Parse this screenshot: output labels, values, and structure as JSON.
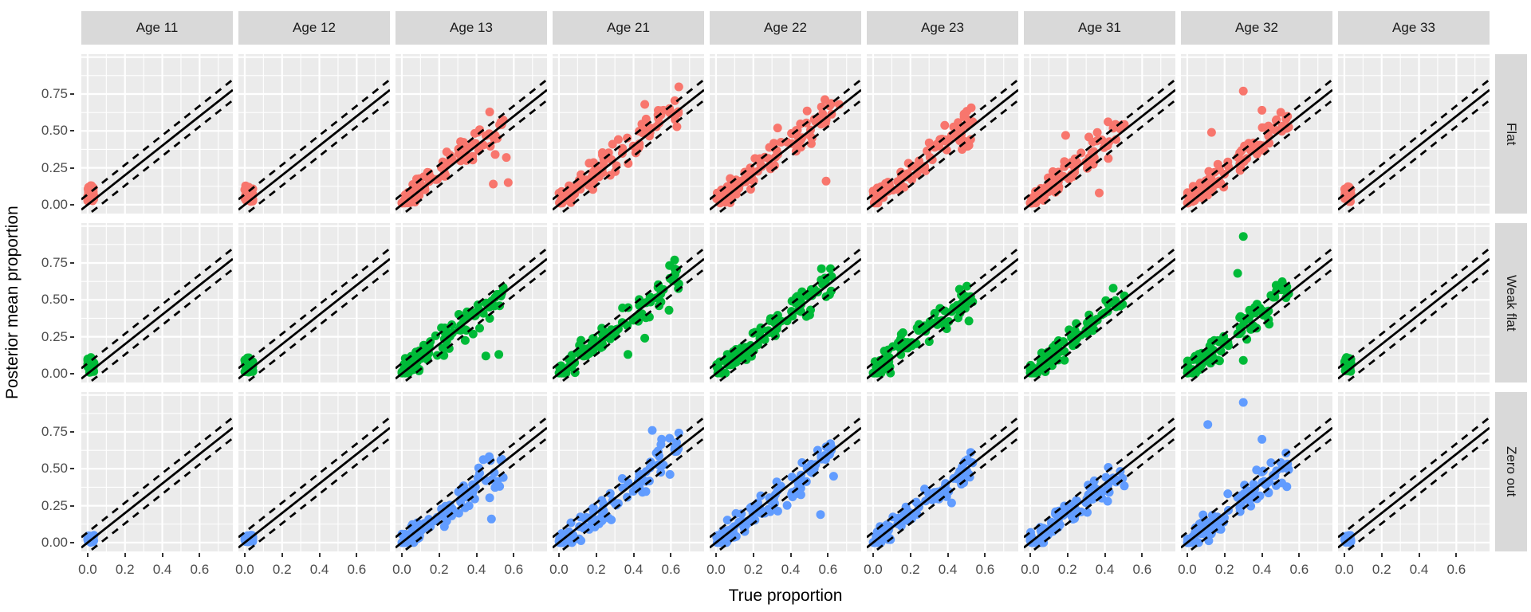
{
  "chart_data": {
    "type": "scatter",
    "title": "",
    "xlabel": "True proportion",
    "ylabel": "Posterior mean proportion",
    "xlim": [
      -0.034,
      0.778
    ],
    "ylim": [
      -0.06,
      1.02
    ],
    "grid": "on",
    "legend": "none",
    "x_ticks": [
      {
        "v": 0.0,
        "label": "0.0"
      },
      {
        "v": 0.2,
        "label": "0.2"
      },
      {
        "v": 0.4,
        "label": "0.4"
      },
      {
        "v": 0.6,
        "label": "0.6"
      }
    ],
    "y_ticks": [
      {
        "v": 0.0,
        "label": "0.00"
      },
      {
        "v": 0.25,
        "label": "0.25"
      },
      {
        "v": 0.5,
        "label": "0.50"
      },
      {
        "v": 0.75,
        "label": "0.75"
      }
    ],
    "x_minor": [
      0.1,
      0.3,
      0.5,
      0.7
    ],
    "y_major_gridlines": [
      0,
      0.25,
      0.5,
      0.75,
      1.0
    ],
    "y_minor": [
      0.125,
      0.375,
      0.625,
      0.875
    ],
    "identity_line": {
      "slope": 1,
      "intercept": 0,
      "style": "solid"
    },
    "band_lines": {
      "offsets": [
        0.07,
        -0.07
      ],
      "style": "dashed"
    },
    "style": {
      "panel_bg": "#EBEBEB",
      "strip_bg": "#D9D9D9",
      "grid_color": "#FFFFFF",
      "tick_text_color": "#4D4D4D",
      "strip_text_color": "#1A1A1A",
      "line_color": "#000000",
      "point_radius": 5.5
    },
    "facet_rows": [
      {
        "label": "Flat",
        "color": "#F8766D",
        "bias": 0.025,
        "sd": 0.06,
        "ymin": 0.012,
        "origin_y": [
          0.02,
          0.13
        ]
      },
      {
        "label": "Weak flat",
        "color": "#00BA38",
        "bias": 0.005,
        "sd": 0.06,
        "ymin": 0.004,
        "origin_y": [
          0.008,
          0.11
        ]
      },
      {
        "label": "Zero out",
        "color": "#619CFF",
        "bias": -0.01,
        "sd": 0.065,
        "ymin": 0.0,
        "origin_y": [
          0.0,
          0.05
        ]
      }
    ],
    "facet_cols": [
      {
        "label": "Age 11",
        "kind": "origin",
        "n": 28,
        "xmax": 0.035,
        "pow": 1.3
      },
      {
        "label": "Age 12",
        "kind": "origin",
        "n": 30,
        "xmax": 0.045,
        "pow": 1.3
      },
      {
        "label": "Age 13",
        "kind": "cloud",
        "n": 90,
        "xmax": 0.55,
        "pow": 1.5
      },
      {
        "label": "Age 21",
        "kind": "cloud",
        "n": 95,
        "xmax": 0.65,
        "pow": 1.4
      },
      {
        "label": "Age 22",
        "kind": "cloud",
        "n": 95,
        "xmax": 0.62,
        "pow": 1.45
      },
      {
        "label": "Age 23",
        "kind": "cloud",
        "n": 92,
        "xmax": 0.56,
        "pow": 1.45
      },
      {
        "label": "Age 31",
        "kind": "cloud",
        "n": 92,
        "xmax": 0.52,
        "pow": 1.5
      },
      {
        "label": "Age 32",
        "kind": "cloud",
        "n": 92,
        "xmax": 0.55,
        "pow": 1.5
      },
      {
        "label": "Age 33",
        "kind": "origin",
        "n": 22,
        "xmax": 0.035,
        "pow": 1.3
      }
    ],
    "outlier_points": {
      "Flat": {
        "Age 13": [
          [
            0.49,
            0.14
          ],
          [
            0.57,
            0.15
          ],
          [
            0.5,
            0.34
          ],
          [
            0.56,
            0.32
          ]
        ],
        "Age 21": [
          [
            0.46,
            0.68
          ],
          [
            0.62,
            0.6
          ],
          [
            0.64,
            0.62
          ]
        ],
        "Age 22": [
          [
            0.59,
            0.16
          ],
          [
            0.66,
            0.68
          ],
          [
            0.33,
            0.52
          ]
        ],
        "Age 31": [
          [
            0.19,
            0.47
          ],
          [
            0.37,
            0.08
          ]
        ],
        "Age 32": [
          [
            0.3,
            0.77
          ],
          [
            0.4,
            0.64
          ],
          [
            0.13,
            0.49
          ]
        ]
      },
      "Weak flat": {
        "Age 13": [
          [
            0.45,
            0.12
          ],
          [
            0.52,
            0.13
          ]
        ],
        "Age 21": [
          [
            0.62,
            0.77
          ],
          [
            0.61,
            0.63
          ],
          [
            0.59,
            0.43
          ],
          [
            0.46,
            0.24
          ],
          [
            0.37,
            0.13
          ]
        ],
        "Age 32": [
          [
            0.3,
            0.93
          ],
          [
            0.27,
            0.68
          ],
          [
            0.3,
            0.09
          ]
        ]
      },
      "Zero out": {
        "Age 13": [
          [
            0.36,
            0.25
          ],
          [
            0.48,
            0.16
          ]
        ],
        "Age 21": [
          [
            0.5,
            0.76
          ],
          [
            0.55,
            0.7
          ],
          [
            0.62,
            0.63
          ]
        ],
        "Age 22": [
          [
            0.56,
            0.19
          ],
          [
            0.41,
            0.31
          ],
          [
            0.63,
            0.45
          ]
        ],
        "Age 32": [
          [
            0.3,
            0.95
          ],
          [
            0.11,
            0.8
          ],
          [
            0.4,
            0.7
          ]
        ]
      }
    }
  }
}
